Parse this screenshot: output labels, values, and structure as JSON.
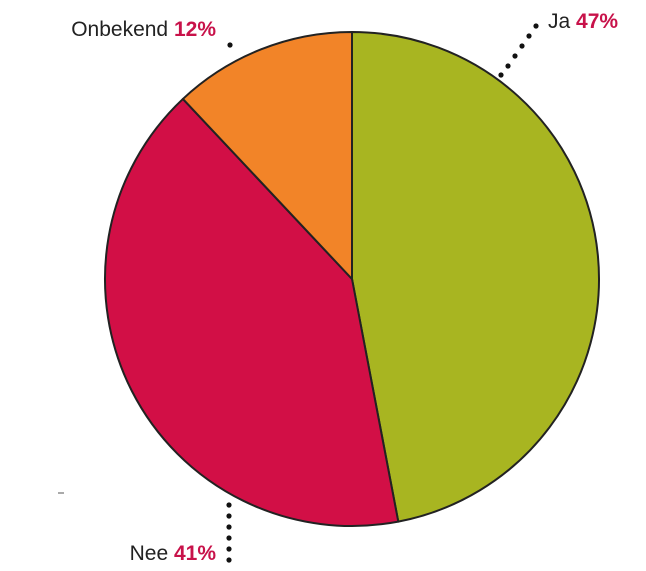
{
  "chart_data": {
    "type": "pie",
    "categories": [
      "Ja",
      "Nee",
      "Onbekend"
    ],
    "values": [
      47,
      41,
      12
    ],
    "value_labels": [
      "47%",
      "41%",
      "12%"
    ],
    "colors": [
      "#a8b521",
      "#d20f46",
      "#f28428"
    ]
  }
}
